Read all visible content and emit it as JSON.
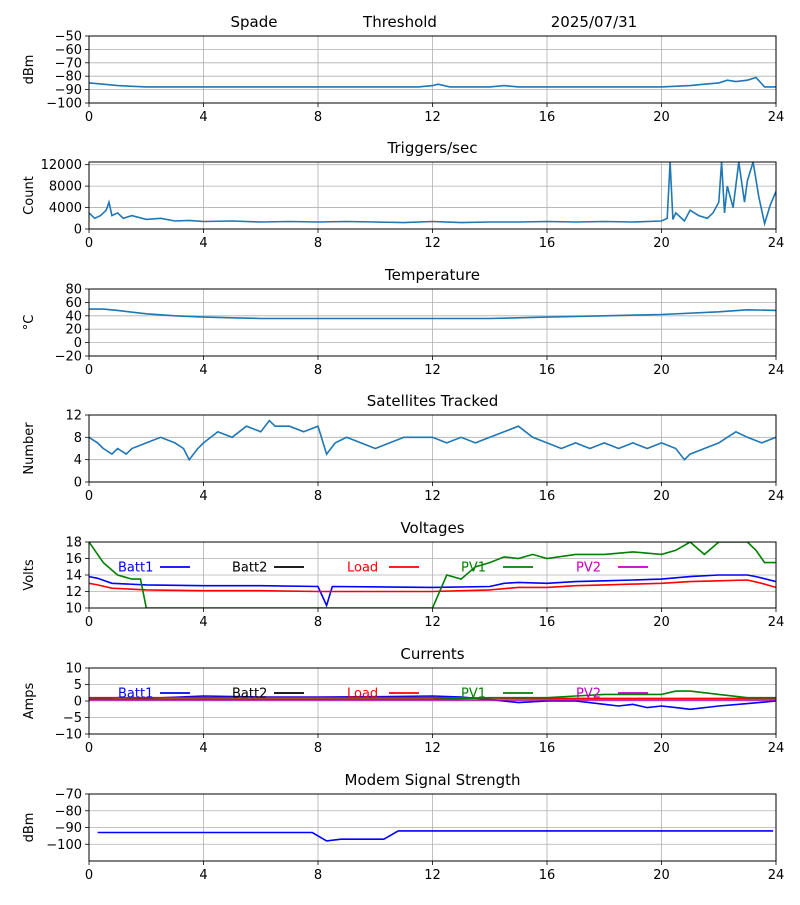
{
  "header": {
    "site": "Spade",
    "mode": "Threshold",
    "date": "2025/07/31"
  },
  "colors": {
    "default": "#1f77b4",
    "grid": "#b0b0b0"
  },
  "chart_data": [
    {
      "id": "signal",
      "type": "line",
      "title": "",
      "ylabel": "dBm",
      "ylim": [
        -100,
        -50
      ],
      "yticks": [
        -100,
        -90,
        -80,
        -70,
        -60,
        -50
      ],
      "xlim": [
        0,
        24
      ],
      "xticks": [
        0,
        4,
        8,
        12,
        16,
        20,
        24
      ],
      "series": [
        {
          "color": "#1f77b4",
          "x": [
            0,
            0.5,
            1,
            2,
            3,
            4,
            6,
            8,
            10,
            11.5,
            12,
            12.2,
            12.6,
            13,
            14,
            14.5,
            15,
            16,
            17,
            18,
            20,
            21,
            21.5,
            22,
            22.3,
            22.6,
            23,
            23.3,
            23.6,
            24
          ],
          "y": [
            -85,
            -86,
            -87,
            -88,
            -88,
            -88,
            -88,
            -88,
            -88,
            -88,
            -87,
            -86,
            -88,
            -88,
            -88,
            -87,
            -88,
            -88,
            -88,
            -88,
            -88,
            -87,
            -86,
            -85,
            -83,
            -84,
            -83,
            -81,
            -88,
            -88
          ]
        }
      ]
    },
    {
      "id": "triggers",
      "type": "line",
      "title": "Triggers/sec",
      "ylabel": "Count",
      "ylim": [
        0,
        12500
      ],
      "yticks": [
        0,
        4000,
        8000,
        12000
      ],
      "xlim": [
        0,
        24
      ],
      "xticks": [
        0,
        4,
        8,
        12,
        16,
        20,
        24
      ],
      "series": [
        {
          "color": "#1f77b4",
          "x": [
            0,
            0.2,
            0.4,
            0.6,
            0.7,
            0.8,
            1,
            1.2,
            1.5,
            2,
            2.5,
            3,
            3.5,
            4,
            5,
            6,
            7,
            8,
            9,
            10,
            11,
            12,
            13,
            14,
            15,
            16,
            17,
            18,
            19,
            20,
            20.2,
            20.3,
            20.4,
            20.5,
            20.8,
            21,
            21.3,
            21.6,
            21.8,
            22,
            22.1,
            22.2,
            22.3,
            22.5,
            22.7,
            22.9,
            23,
            23.2,
            23.4,
            23.6,
            23.8,
            24
          ],
          "y": [
            3000,
            2000,
            2500,
            3500,
            5000,
            2500,
            3000,
            2000,
            2500,
            1800,
            2000,
            1500,
            1600,
            1400,
            1500,
            1300,
            1400,
            1300,
            1400,
            1300,
            1200,
            1400,
            1200,
            1300,
            1300,
            1400,
            1300,
            1400,
            1300,
            1500,
            2000,
            12500,
            1800,
            3000,
            1500,
            3500,
            2500,
            2000,
            3000,
            5000,
            12500,
            3000,
            8000,
            4000,
            12500,
            5000,
            9000,
            12500,
            6000,
            1000,
            4500,
            7000
          ]
        }
      ]
    },
    {
      "id": "temperature",
      "type": "line",
      "title": "Temperature",
      "ylabel": "°C",
      "ylim": [
        -20,
        80
      ],
      "yticks": [
        -20,
        0,
        20,
        40,
        60,
        80
      ],
      "xlim": [
        0,
        24
      ],
      "xticks": [
        0,
        4,
        8,
        12,
        16,
        20,
        24
      ],
      "series": [
        {
          "color": "#1f77b4",
          "x": [
            0,
            0.5,
            1,
            2,
            3,
            4,
            5,
            6,
            8,
            10,
            12,
            14,
            16,
            18,
            20,
            22,
            23,
            24
          ],
          "y": [
            50,
            50,
            48,
            43,
            40,
            38,
            37,
            36,
            36,
            36,
            36,
            36,
            38,
            40,
            42,
            46,
            49,
            48
          ]
        }
      ]
    },
    {
      "id": "satellites",
      "type": "line",
      "title": "Satellites Tracked",
      "ylabel": "Number",
      "ylim": [
        0,
        12
      ],
      "yticks": [
        0,
        4,
        8,
        12
      ],
      "xlim": [
        0,
        24
      ],
      "xticks": [
        0,
        4,
        8,
        12,
        16,
        20,
        24
      ],
      "series": [
        {
          "color": "#1f77b4",
          "x": [
            0,
            0.3,
            0.5,
            0.8,
            1,
            1.3,
            1.5,
            2,
            2.5,
            3,
            3.3,
            3.5,
            3.8,
            4,
            4.5,
            5,
            5.5,
            6,
            6.3,
            6.5,
            7,
            7.5,
            8,
            8.3,
            8.6,
            9,
            9.5,
            10,
            11,
            12,
            12.5,
            13,
            13.5,
            14,
            14.5,
            15,
            15.5,
            16,
            16.5,
            17,
            17.5,
            18,
            18.5,
            19,
            19.5,
            20,
            20.5,
            20.8,
            21,
            21.5,
            22,
            22.3,
            22.6,
            23,
            23.5,
            24
          ],
          "y": [
            8,
            7,
            6,
            5,
            6,
            5,
            6,
            7,
            8,
            7,
            6,
            4,
            6,
            7,
            9,
            8,
            10,
            9,
            11,
            10,
            10,
            9,
            10,
            5,
            7,
            8,
            7,
            6,
            8,
            8,
            7,
            8,
            7,
            8,
            9,
            10,
            8,
            7,
            6,
            7,
            6,
            7,
            6,
            7,
            6,
            7,
            6,
            4,
            5,
            6,
            7,
            8,
            9,
            8,
            7,
            8
          ]
        }
      ]
    },
    {
      "id": "voltages",
      "type": "line",
      "title": "Voltages",
      "ylabel": "Volts",
      "ylim": [
        10,
        18
      ],
      "yticks": [
        10,
        12,
        14,
        16,
        18
      ],
      "xlim": [
        0,
        24
      ],
      "xticks": [
        0,
        4,
        8,
        12,
        16,
        20,
        24
      ],
      "series": [
        {
          "name": "Batt1",
          "color": "#0000ff",
          "x": [
            0,
            0.3,
            0.8,
            2,
            4,
            6,
            8,
            8.3,
            8.5,
            12,
            14,
            14.5,
            15,
            16,
            17,
            18,
            19,
            20,
            21,
            22,
            23,
            23.3,
            24
          ],
          "y": [
            13.8,
            13.6,
            13,
            12.8,
            12.7,
            12.7,
            12.6,
            10.3,
            12.6,
            12.5,
            12.6,
            13,
            13.1,
            13,
            13.2,
            13.3,
            13.4,
            13.5,
            13.8,
            14,
            14,
            13.8,
            13.2
          ]
        },
        {
          "name": "Batt2",
          "color": "#000000",
          "x": [],
          "y": []
        },
        {
          "name": "Load",
          "color": "#ff0000",
          "x": [
            0,
            0.3,
            0.8,
            2,
            4,
            6,
            8,
            10,
            12,
            14,
            15,
            16,
            17,
            18,
            19,
            20,
            21,
            22,
            23,
            23.5,
            24
          ],
          "y": [
            13,
            12.8,
            12.4,
            12.2,
            12.1,
            12.1,
            12,
            12,
            12,
            12.2,
            12.5,
            12.5,
            12.7,
            12.8,
            12.9,
            13,
            13.2,
            13.3,
            13.4,
            13,
            12.5
          ]
        },
        {
          "name": "PV1",
          "color": "#008000",
          "x": [
            0,
            0.5,
            1,
            1.5,
            1.8,
            2,
            12,
            12.5,
            13,
            13.5,
            14,
            14.5,
            15,
            15.5,
            16,
            17,
            18,
            19,
            20,
            20.5,
            21,
            21.5,
            22,
            23,
            23.3,
            23.6,
            24
          ],
          "y": [
            18,
            15.5,
            14,
            13.5,
            13.5,
            10,
            10,
            14,
            13.5,
            15,
            15.5,
            16.2,
            16,
            16.5,
            16,
            16.5,
            16.5,
            16.8,
            16.5,
            17,
            18,
            16.5,
            18,
            18,
            17,
            15.5,
            15.5
          ]
        },
        {
          "name": "PV2",
          "color": "#bf00bf",
          "x": [],
          "y": []
        }
      ]
    },
    {
      "id": "currents",
      "type": "line",
      "title": "Currents",
      "ylabel": "Amps",
      "ylim": [
        -10,
        10
      ],
      "yticks": [
        -10,
        -5,
        0,
        5,
        10
      ],
      "xlim": [
        0,
        24
      ],
      "xticks": [
        0,
        4,
        8,
        12,
        16,
        20,
        24
      ],
      "series": [
        {
          "name": "Batt1",
          "color": "#0000ff",
          "x": [
            0,
            1,
            2,
            4,
            6,
            8,
            10,
            12,
            13,
            14,
            15,
            16,
            17,
            18,
            18.5,
            19,
            19.5,
            20,
            20.5,
            21,
            22,
            23,
            24
          ],
          "y": [
            0.5,
            1,
            0.8,
            1.5,
            1.2,
            1.2,
            1.3,
            1.5,
            1.2,
            0.5,
            -0.5,
            0,
            0,
            -1,
            -1.5,
            -1,
            -2,
            -1.5,
            -2,
            -2.5,
            -1.5,
            -0.8,
            0
          ]
        },
        {
          "name": "Batt2",
          "color": "#000000",
          "x": [],
          "y": []
        },
        {
          "name": "Load",
          "color": "#ff0000",
          "x": [
            0,
            4,
            8,
            12,
            16,
            20,
            24
          ],
          "y": [
            1,
            1,
            1,
            1,
            0.8,
            0.8,
            0.8
          ]
        },
        {
          "name": "PV1",
          "color": "#008000",
          "x": [
            0,
            4,
            8,
            12,
            14,
            15,
            16,
            17,
            18,
            19,
            20,
            20.5,
            21,
            22,
            23,
            24
          ],
          "y": [
            0.5,
            0.5,
            0.5,
            0.5,
            1,
            1,
            1,
            1.5,
            2,
            2,
            2,
            3,
            3,
            2,
            1,
            1
          ]
        },
        {
          "name": "PV2",
          "color": "#bf00bf",
          "x": [
            0,
            24
          ],
          "y": [
            0.3,
            0.3
          ]
        }
      ]
    },
    {
      "id": "modem",
      "type": "line",
      "title": "Modem Signal Strength",
      "ylabel": "dBm",
      "ylim": [
        -110,
        -70
      ],
      "yticks": [
        -100,
        -90,
        -80,
        -70
      ],
      "xlim": [
        0,
        24
      ],
      "xticks": [
        0,
        4,
        8,
        12,
        16,
        20,
        24
      ],
      "series": [
        {
          "color": "#0000ff",
          "x": [
            0.3,
            2,
            4,
            6,
            7.8,
            8.3,
            8.8,
            10.3,
            10.8,
            12,
            16,
            20,
            23.9
          ],
          "y": [
            -93,
            -93,
            -93,
            -93,
            -93,
            -98,
            -97,
            -97,
            -92,
            -92,
            -92,
            -92,
            -92
          ]
        }
      ]
    }
  ]
}
